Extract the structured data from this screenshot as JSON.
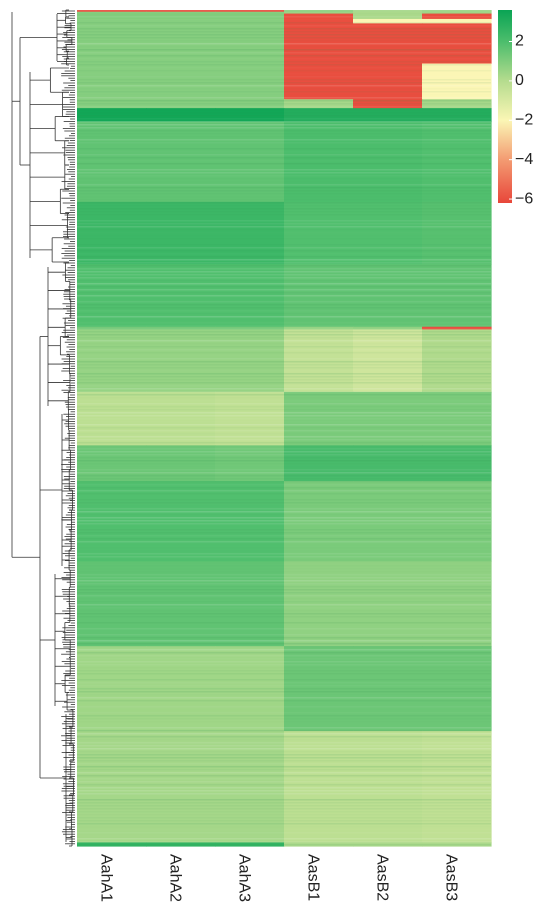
{
  "chart_data": {
    "type": "heatmap",
    "title": "",
    "xlabel": "",
    "ylabel": "",
    "columns": [
      "AahA1",
      "AahA2",
      "AahA3",
      "AasB1",
      "AasB2",
      "AasB3"
    ],
    "row_dendrogram": true,
    "column_dendrogram": false,
    "color_scale": {
      "min": -6.2,
      "max": 3.6,
      "stops": [
        {
          "value": -6.2,
          "color": "#e8463a"
        },
        {
          "value": -4,
          "color": "#f39b72"
        },
        {
          "value": -2,
          "color": "#fbf6b5"
        },
        {
          "value": 0,
          "color": "#b5dc8e"
        },
        {
          "value": 2,
          "color": "#4cbd6c"
        },
        {
          "value": 3.6,
          "color": "#0aa454"
        }
      ],
      "ticks": [
        "2",
        "0",
        "−2",
        "−4",
        "−6"
      ],
      "tick_values": [
        2,
        0,
        -2,
        -4,
        -6
      ],
      "legend_position": "top-right"
    },
    "blocks": [
      {
        "rows": 2,
        "values": [
          -6,
          -6,
          -6,
          0.8,
          0.3,
          0.5
        ]
      },
      {
        "rows": 2,
        "values": [
          0.9,
          0.9,
          0.9,
          0.5,
          0.2,
          0.4
        ]
      },
      {
        "rows": 6,
        "values": [
          1.0,
          1.0,
          1.0,
          -6,
          0.2,
          -6
        ]
      },
      {
        "rows": 5,
        "values": [
          0.9,
          0.9,
          0.9,
          -6,
          -2,
          -2
        ]
      },
      {
        "rows": 45,
        "values": [
          0.9,
          0.9,
          0.9,
          -6,
          -6,
          -6
        ]
      },
      {
        "rows": 40,
        "values": [
          0.9,
          0.9,
          0.9,
          -6,
          -6,
          -2
        ]
      },
      {
        "rows": 10,
        "values": [
          0.9,
          0.9,
          0.9,
          0.3,
          -6,
          0.3
        ]
      },
      {
        "rows": 15,
        "values": [
          3.4,
          3.4,
          3.4,
          3.0,
          3.0,
          3.0
        ]
      },
      {
        "rows": 90,
        "values": [
          1.6,
          1.6,
          1.6,
          2.0,
          2.0,
          1.9
        ]
      },
      {
        "rows": 70,
        "values": [
          2.4,
          2.4,
          2.4,
          1.9,
          1.9,
          1.8
        ]
      },
      {
        "rows": 70,
        "values": [
          1.9,
          1.9,
          1.9,
          1.6,
          1.6,
          1.6
        ]
      },
      {
        "rows": 3,
        "values": [
          1.2,
          1.2,
          1.2,
          0.6,
          0.7,
          -6
        ]
      },
      {
        "rows": 70,
        "values": [
          0.6,
          0.6,
          0.6,
          -0.4,
          -0.7,
          0.1
        ]
      },
      {
        "rows": 60,
        "values": [
          -0.2,
          -0.2,
          -0.3,
          1.1,
          1.1,
          1.1
        ]
      },
      {
        "rows": 40,
        "values": [
          1.4,
          1.4,
          1.3,
          2.1,
          2.1,
          2.1
        ]
      },
      {
        "rows": 90,
        "values": [
          1.9,
          1.9,
          1.9,
          1.1,
          1.1,
          1.1
        ]
      },
      {
        "rows": 95,
        "values": [
          1.6,
          1.6,
          1.6,
          0.7,
          0.7,
          0.7
        ]
      },
      {
        "rows": 95,
        "values": [
          0.4,
          0.4,
          0.4,
          1.4,
          1.4,
          1.4
        ]
      },
      {
        "rows": 125,
        "values": [
          0.3,
          0.3,
          0.3,
          -0.2,
          -0.2,
          -0.3
        ]
      },
      {
        "rows": 4,
        "values": [
          2.6,
          2.6,
          2.6,
          0.2,
          0.2,
          0.2
        ]
      }
    ]
  }
}
